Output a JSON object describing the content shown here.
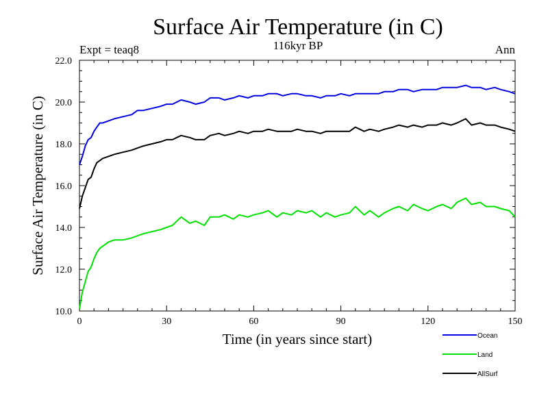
{
  "chart_data": {
    "type": "line",
    "title": "Surface Air Temperature (in C)",
    "subtitle_left": "Expt = teaq8",
    "subtitle_center": "116kyr BP",
    "subtitle_right": "Ann",
    "xlabel": "Time (in years since start)",
    "ylabel": "Surface Air Temperature (in C)",
    "xlim": [
      0,
      150
    ],
    "ylim": [
      10.0,
      22.0
    ],
    "xticks": [
      0,
      30,
      60,
      90,
      120,
      150
    ],
    "xtick_labels": [
      "0",
      "30",
      "60",
      "90",
      "120",
      "150"
    ],
    "yticks": [
      10,
      12,
      14,
      16,
      18,
      20,
      22
    ],
    "ytick_labels": [
      "10.0",
      "12.0",
      "14.0",
      "16.0",
      "18.0",
      "20.0",
      "22.0"
    ],
    "legend_position": "bottom-right, below plot",
    "series": [
      {
        "name": "Ocean",
        "color": "#0000e0",
        "x": [
          0,
          1,
          2,
          3,
          4,
          5,
          6,
          7,
          8,
          10,
          12,
          15,
          18,
          20,
          22,
          25,
          28,
          30,
          32,
          35,
          38,
          40,
          43,
          45,
          48,
          50,
          53,
          55,
          58,
          60,
          63,
          65,
          68,
          70,
          73,
          75,
          78,
          80,
          83,
          85,
          88,
          90,
          93,
          95,
          98,
          100,
          103,
          105,
          108,
          110,
          113,
          115,
          118,
          120,
          123,
          125,
          128,
          130,
          133,
          135,
          138,
          140,
          143,
          145,
          148,
          150
        ],
        "values": [
          17.0,
          17.4,
          17.9,
          18.2,
          18.3,
          18.6,
          18.8,
          19.0,
          19.0,
          19.1,
          19.2,
          19.3,
          19.4,
          19.6,
          19.6,
          19.7,
          19.8,
          19.9,
          19.9,
          20.1,
          20.0,
          19.9,
          20.0,
          20.2,
          20.2,
          20.1,
          20.2,
          20.3,
          20.2,
          20.3,
          20.3,
          20.4,
          20.4,
          20.3,
          20.4,
          20.4,
          20.3,
          20.3,
          20.2,
          20.3,
          20.3,
          20.4,
          20.3,
          20.4,
          20.4,
          20.4,
          20.4,
          20.5,
          20.5,
          20.6,
          20.6,
          20.5,
          20.6,
          20.6,
          20.6,
          20.7,
          20.7,
          20.7,
          20.8,
          20.7,
          20.7,
          20.6,
          20.7,
          20.6,
          20.5,
          20.4
        ]
      },
      {
        "name": "Land",
        "color": "#00e000",
        "x": [
          0,
          1,
          2,
          3,
          4,
          5,
          6,
          7,
          8,
          10,
          12,
          15,
          18,
          20,
          22,
          25,
          28,
          30,
          32,
          35,
          38,
          40,
          43,
          45,
          48,
          50,
          53,
          55,
          58,
          60,
          63,
          65,
          68,
          70,
          73,
          75,
          78,
          80,
          83,
          85,
          88,
          90,
          93,
          95,
          98,
          100,
          103,
          105,
          108,
          110,
          113,
          115,
          118,
          120,
          123,
          125,
          128,
          130,
          133,
          135,
          138,
          140,
          143,
          145,
          148,
          150
        ],
        "values": [
          10.1,
          10.9,
          11.4,
          11.9,
          12.1,
          12.5,
          12.8,
          13.0,
          13.1,
          13.3,
          13.4,
          13.4,
          13.5,
          13.6,
          13.7,
          13.8,
          13.9,
          14.0,
          14.1,
          14.5,
          14.2,
          14.3,
          14.1,
          14.5,
          14.5,
          14.6,
          14.4,
          14.6,
          14.5,
          14.6,
          14.7,
          14.8,
          14.5,
          14.7,
          14.6,
          14.8,
          14.7,
          14.8,
          14.5,
          14.7,
          14.5,
          14.6,
          14.7,
          15.0,
          14.6,
          14.8,
          14.5,
          14.7,
          14.9,
          15.0,
          14.8,
          15.1,
          14.9,
          14.8,
          15.0,
          15.1,
          14.9,
          15.2,
          15.4,
          15.1,
          15.2,
          15.0,
          15.0,
          14.9,
          14.8,
          14.5
        ]
      },
      {
        "name": "AllSurf",
        "color": "#000000",
        "x": [
          0,
          1,
          2,
          3,
          4,
          5,
          6,
          7,
          8,
          10,
          12,
          15,
          18,
          20,
          22,
          25,
          28,
          30,
          32,
          35,
          38,
          40,
          43,
          45,
          48,
          50,
          53,
          55,
          58,
          60,
          63,
          65,
          68,
          70,
          73,
          75,
          78,
          80,
          83,
          85,
          88,
          90,
          93,
          95,
          98,
          100,
          103,
          105,
          108,
          110,
          113,
          115,
          118,
          120,
          123,
          125,
          128,
          130,
          133,
          135,
          138,
          140,
          143,
          145,
          148,
          150
        ],
        "values": [
          14.9,
          15.5,
          15.9,
          16.3,
          16.4,
          16.8,
          17.1,
          17.2,
          17.3,
          17.4,
          17.5,
          17.6,
          17.7,
          17.8,
          17.9,
          18.0,
          18.1,
          18.2,
          18.2,
          18.4,
          18.3,
          18.2,
          18.2,
          18.4,
          18.5,
          18.4,
          18.5,
          18.6,
          18.5,
          18.6,
          18.6,
          18.7,
          18.6,
          18.6,
          18.6,
          18.7,
          18.6,
          18.6,
          18.5,
          18.6,
          18.6,
          18.6,
          18.6,
          18.8,
          18.6,
          18.7,
          18.6,
          18.7,
          18.8,
          18.9,
          18.8,
          18.9,
          18.8,
          18.9,
          18.9,
          19.0,
          18.9,
          19.0,
          19.2,
          18.9,
          19.0,
          18.9,
          18.9,
          18.8,
          18.7,
          18.6
        ]
      }
    ]
  }
}
